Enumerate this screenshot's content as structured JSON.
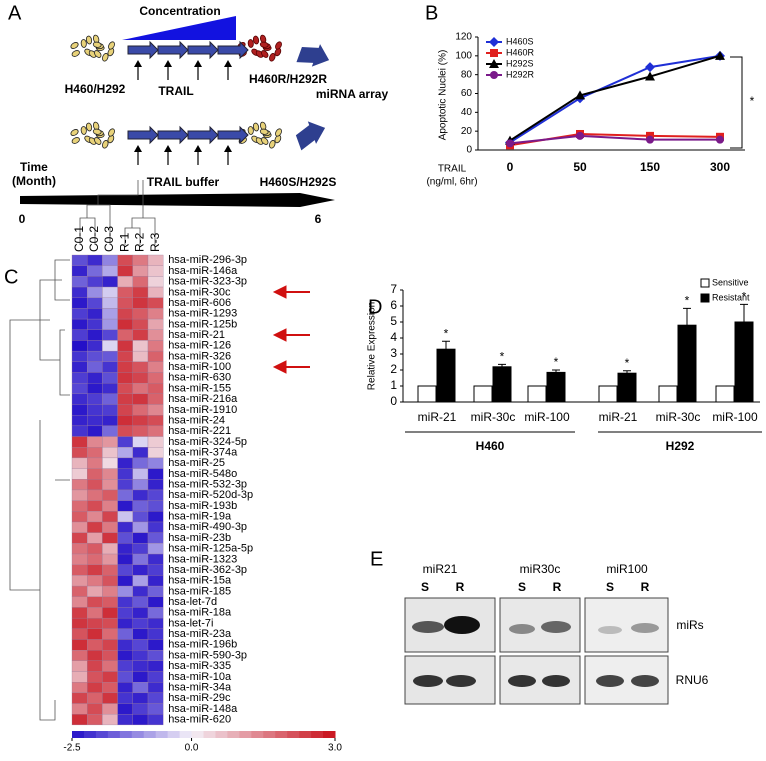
{
  "panel_labels": [
    "A",
    "B",
    "C",
    "D",
    "E"
  ],
  "diagram": {
    "concentration": "Concentration",
    "parent": "H460/H292",
    "trail": "TRAIL",
    "resistant": "H460R/H292R",
    "array": "miRNA array",
    "buffer": "TRAIL buffer",
    "sensitive": "H460S/H292S",
    "time": [
      "Time",
      "(Month)"
    ],
    "time_start": "0",
    "time_end": "6"
  },
  "chart_data": [
    {
      "type": "line",
      "ylabel": "Apoptotic Nuclei (%)",
      "xlabel": [
        "TRAIL",
        "(ng/ml, 6hr)"
      ],
      "categories": [
        "0",
        "50",
        "150",
        "300"
      ],
      "ylim": [
        0,
        120
      ],
      "yticks": [
        0,
        20,
        40,
        60,
        80,
        100,
        120
      ],
      "legend": "upper left",
      "significance": "*",
      "series": [
        {
          "name": "H460S",
          "color": "#1f2fd6",
          "marker": "diamond",
          "values": [
            8,
            55,
            88,
            100
          ]
        },
        {
          "name": "H460R",
          "color": "#e0201e",
          "marker": "square",
          "values": [
            5,
            17,
            15,
            14
          ]
        },
        {
          "name": "H292S",
          "color": "#000000",
          "marker": "triangle",
          "values": [
            10,
            58,
            78,
            100
          ]
        },
        {
          "name": "H292R",
          "color": "#7a1a8a",
          "marker": "circle",
          "values": [
            7,
            15,
            11,
            11
          ]
        }
      ]
    },
    {
      "type": "heatmap",
      "columns": [
        "C0-1",
        "C0-2",
        "C0-3",
        "R-1",
        "R-2",
        "R-3"
      ],
      "rows": [
        "hsa-miR-296-3p",
        "hsa-miR-146a",
        "hsa-miR-323-3p",
        "hsa-miR-30c",
        "hsa-miR-606",
        "hsa-miR-1293",
        "hsa-miR-125b",
        "hsa-miR-21",
        "hsa-miR-126",
        "hsa-miR-326",
        "hsa-miR-100",
        "hsa-miR-630",
        "hsa-miR-155",
        "hsa-miR-216a",
        "hsa-miR-1910",
        "hsa-miR-24",
        "hsa-miR-221",
        "hsa-miR-324-5p",
        "hsa-miR-374a",
        "hsa-miR-25",
        "hsa-miR-548o",
        "hsa-miR-532-3p",
        "hsa-miR-520d-3p",
        "hsa-miR-193b",
        "hsa-miR-19a",
        "hsa-miR-490-3p",
        "hsa-miR-23b",
        "hsa-miR-125a-5p",
        "hsa-miR-1323",
        "hsa-miR-362-3p",
        "hsa-miR-15a",
        "hsa-miR-185",
        "hsa-let-7d",
        "hsa-miR-18a",
        "hsa-let-7i",
        "hsa-miR-23a",
        "hsa-miR-196b",
        "hsa-miR-590-3p",
        "hsa-miR-335",
        "hsa-miR-10a",
        "hsa-miR-34a",
        "hsa-miR-29c",
        "hsa-miR-148a",
        "hsa-miR-620"
      ],
      "values": [
        [
          -1.8,
          -2.2,
          -1.2,
          2.2,
          1.6,
          0.8
        ],
        [
          -2.3,
          -1.5,
          -0.8,
          2.5,
          1.2,
          0.6
        ],
        [
          -1.6,
          -2.0,
          -2.3,
          0.9,
          1.8,
          0.4
        ],
        [
          -2.2,
          -1.1,
          -0.4,
          2.0,
          2.4,
          0.8
        ],
        [
          -2.4,
          -1.9,
          -0.6,
          2.1,
          2.5,
          2.2
        ],
        [
          -2.0,
          -2.3,
          -0.9,
          2.3,
          2.0,
          1.5
        ],
        [
          -2.4,
          -2.1,
          -1.0,
          2.6,
          2.2,
          1.0
        ],
        [
          -2.0,
          -2.4,
          -1.9,
          1.9,
          2.4,
          1.3
        ],
        [
          -2.5,
          -2.2,
          -0.3,
          2.5,
          0.6,
          1.6
        ],
        [
          -2.1,
          -1.8,
          -1.7,
          2.3,
          0.7,
          1.9
        ],
        [
          -2.3,
          -1.6,
          -2.1,
          2.4,
          2.1,
          1.5
        ],
        [
          -2.0,
          -2.3,
          -1.8,
          2.5,
          2.3,
          1.8
        ],
        [
          -1.9,
          -2.4,
          -2.2,
          2.2,
          1.7,
          2.0
        ],
        [
          -2.2,
          -2.0,
          -1.6,
          2.4,
          2.5,
          1.9
        ],
        [
          -2.4,
          -2.1,
          -2.0,
          2.3,
          1.8,
          1.4
        ],
        [
          -2.3,
          -2.2,
          -2.3,
          2.6,
          2.4,
          2.2
        ],
        [
          -2.1,
          -2.4,
          -1.5,
          2.2,
          2.0,
          1.7
        ],
        [
          2.5,
          1.4,
          1.2,
          -2.0,
          -0.3,
          0.5
        ],
        [
          2.2,
          1.8,
          0.6,
          -0.8,
          -2.2,
          0.4
        ],
        [
          0.8,
          1.6,
          0.3,
          -2.3,
          -1.5,
          -1.2
        ],
        [
          0.5,
          1.9,
          1.4,
          -2.1,
          -0.6,
          -2.4
        ],
        [
          1.6,
          2.1,
          1.3,
          -2.0,
          -1.2,
          -2.3
        ],
        [
          1.2,
          1.7,
          2.0,
          -1.5,
          -2.2,
          -1.9
        ],
        [
          1.8,
          2.2,
          1.5,
          -2.4,
          -1.6,
          -1.8
        ],
        [
          2.0,
          1.4,
          2.3,
          -0.5,
          -1.8,
          -2.4
        ],
        [
          1.3,
          2.4,
          1.6,
          -2.2,
          -1.0,
          -2.1
        ],
        [
          2.3,
          1.1,
          2.5,
          -1.8,
          -2.4,
          -1.7
        ],
        [
          1.7,
          2.0,
          0.9,
          -2.3,
          -2.0,
          -1.0
        ],
        [
          1.5,
          1.8,
          1.2,
          -2.4,
          -1.4,
          -2.2
        ],
        [
          2.0,
          2.4,
          1.9,
          -1.9,
          -2.3,
          -2.0
        ],
        [
          1.2,
          1.6,
          2.1,
          -2.4,
          -0.9,
          -2.3
        ],
        [
          1.9,
          1.0,
          1.5,
          -1.1,
          -2.2,
          -1.6
        ],
        [
          1.4,
          2.2,
          2.0,
          -2.1,
          -1.7,
          -2.4
        ],
        [
          2.4,
          1.7,
          2.6,
          -2.0,
          -2.3,
          -1.5
        ],
        [
          2.5,
          2.3,
          2.2,
          -2.3,
          -2.0,
          -2.2
        ],
        [
          2.1,
          2.6,
          1.8,
          -1.6,
          -2.4,
          -2.1
        ],
        [
          2.6,
          2.0,
          2.3,
          -2.2,
          -1.9,
          -2.4
        ],
        [
          1.8,
          2.5,
          2.1,
          -2.4,
          -2.1,
          -1.8
        ],
        [
          1.1,
          2.3,
          1.7,
          -2.0,
          -2.2,
          -2.3
        ],
        [
          0.9,
          2.1,
          2.4,
          -1.8,
          -2.4,
          -2.0
        ],
        [
          1.6,
          2.4,
          2.0,
          -2.3,
          -1.5,
          -2.2
        ],
        [
          2.3,
          1.9,
          2.5,
          -2.1,
          -2.3,
          -1.9
        ],
        [
          1.5,
          2.2,
          1.3,
          -2.4,
          -2.0,
          -1.7
        ],
        [
          2.6,
          2.0,
          0.8,
          -2.2,
          -2.4,
          -2.1
        ]
      ],
      "colors": [
        "#2410c8",
        "#f4f0f8",
        "#c8101a"
      ],
      "colorbar": {
        "range": [
          -2.5,
          3.0
        ],
        "ticks": [
          -2.5,
          {
            "value": 0,
            "label": "0.0"
          },
          {
            "value": 3,
            "label": "3.0"
          }
        ]
      }
    },
    {
      "type": "bar",
      "ylabel": "Relative Expression",
      "categories": [
        "miR-21",
        "miR-30c",
        "miR-100",
        "miR-21",
        "miR-30c",
        "miR-100"
      ],
      "groups": [
        "H460",
        "H292"
      ],
      "ylim": [
        0,
        7
      ],
      "yticks": [
        0,
        1,
        2,
        3,
        4,
        5,
        6,
        7
      ],
      "legend": "upper right",
      "significance": "*",
      "series": [
        {
          "name": "Sensitive",
          "color": "#ffffff",
          "values": [
            1,
            1,
            1,
            1,
            1,
            1
          ]
        },
        {
          "name": "Resistant",
          "color": "#000000",
          "values": [
            3.3,
            2.2,
            1.85,
            1.8,
            4.8,
            5.0
          ],
          "errors": [
            0.5,
            0.15,
            0.15,
            0.15,
            1.05,
            1.1
          ]
        }
      ]
    }
  ],
  "blot": {
    "probes": [
      "miR21",
      "miR30c",
      "miR100"
    ],
    "lanes": [
      "S",
      "R"
    ],
    "rows": [
      "miRs",
      "RNU6"
    ]
  }
}
